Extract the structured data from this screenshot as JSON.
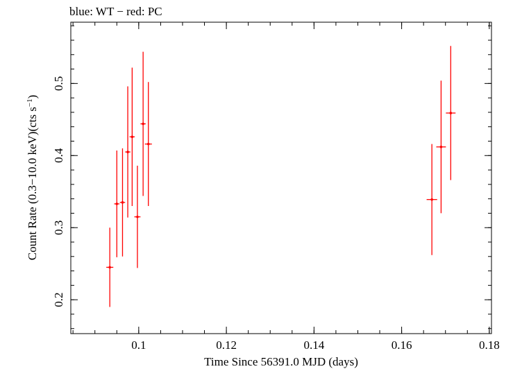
{
  "chart_data": {
    "type": "scatter",
    "title": "blue: WT − red: PC",
    "xlabel": "Time Since 56391.0 MJD (days)",
    "ylabel_main": "Count Rate (0.3−10.0 keV)(cts s",
    "ylabel_sup": "−1",
    "ylabel_close": ")",
    "xlim": [
      0.0845,
      0.1805
    ],
    "ylim": [
      0.153,
      0.585
    ],
    "x_ticks": [
      0.1,
      0.12,
      0.14,
      0.16,
      0.18
    ],
    "x_tick_labels": [
      "0.1",
      "0.12",
      "0.14",
      "0.16",
      "0.18"
    ],
    "y_ticks": [
      0.2,
      0.3,
      0.4,
      0.5
    ],
    "y_tick_labels": [
      "0.2",
      "0.3",
      "0.4",
      "0.5"
    ],
    "grid": false,
    "series": [
      {
        "color": "#ff0000",
        "points": [
          {
            "x": 0.0934,
            "xerr": 0.0008,
            "y": 0.245,
            "yerr": 0.055
          },
          {
            "x": 0.095,
            "xerr": 0.0006,
            "y": 0.333,
            "yerr": 0.074
          },
          {
            "x": 0.0963,
            "xerr": 0.0006,
            "y": 0.335,
            "yerr": 0.075
          },
          {
            "x": 0.0975,
            "xerr": 0.0006,
            "y": 0.405,
            "yerr": 0.091
          },
          {
            "x": 0.0985,
            "xerr": 0.0006,
            "y": 0.426,
            "yerr": 0.096
          },
          {
            "x": 0.0997,
            "xerr": 0.0007,
            "y": 0.315,
            "yerr": 0.071
          },
          {
            "x": 0.101,
            "xerr": 0.0006,
            "y": 0.444,
            "yerr": 0.1
          },
          {
            "x": 0.1022,
            "xerr": 0.0008,
            "y": 0.416,
            "yerr": 0.086
          },
          {
            "x": 0.1669,
            "xerr": 0.0012,
            "y": 0.339,
            "yerr": 0.077
          },
          {
            "x": 0.169,
            "xerr": 0.0011,
            "y": 0.412,
            "yerr": 0.092
          },
          {
            "x": 0.1712,
            "xerr": 0.0011,
            "y": 0.459,
            "yerr": 0.093
          }
        ]
      }
    ]
  }
}
